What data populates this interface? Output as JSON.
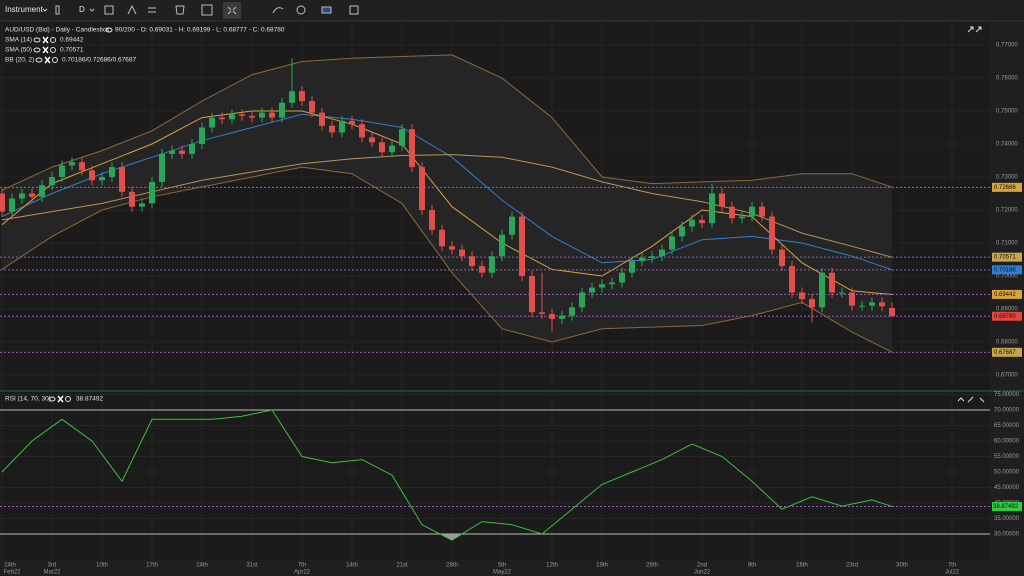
{
  "toolbar": {
    "instrument": "Instrument",
    "timeframe": "D"
  },
  "chart_data": [
    {
      "type": "candlestick",
      "title": "AUD/USD (Bid) - Daily - Candlestick",
      "info": "90/200 - O: 0.69031 - H: 0.69199 - L: 0.68777 - C: 0.68780",
      "up_color": "#2aa55a",
      "down_color": "#e0504a",
      "open": [
        0.725,
        0.7195,
        0.7235,
        0.725,
        0.724,
        0.7275,
        0.73,
        0.7335,
        0.7345,
        0.732,
        0.729,
        0.73,
        0.733,
        0.7255,
        0.721,
        0.722,
        0.7285,
        0.737,
        0.738,
        0.737,
        0.74,
        0.745,
        0.748,
        0.7475,
        0.749,
        0.7485,
        0.748,
        0.7495,
        0.748,
        0.7525,
        0.756,
        0.753,
        0.7495,
        0.7455,
        0.7435,
        0.747,
        0.746,
        0.742,
        0.7405,
        0.7375,
        0.7395,
        0.7445,
        0.733,
        0.72,
        0.714,
        0.709,
        0.708,
        0.706,
        0.703,
        0.701,
        0.706,
        0.7125,
        0.718,
        0.7,
        0.689,
        0.6885,
        0.687,
        0.688,
        0.6905,
        0.695,
        0.6965,
        0.6975,
        0.698,
        0.701,
        0.7045,
        0.7055,
        0.706,
        0.708,
        0.712,
        0.715,
        0.717,
        0.716,
        0.725,
        0.721,
        0.7175,
        0.718,
        0.721,
        0.718,
        0.708,
        0.703,
        0.695,
        0.693,
        0.6905,
        0.701,
        0.695,
        0.695,
        0.691,
        0.691,
        0.692,
        0.69031
      ],
      "high": [
        0.7265,
        0.725,
        0.7265,
        0.7265,
        0.729,
        0.7315,
        0.735,
        0.736,
        0.736,
        0.7335,
        0.7315,
        0.7345,
        0.7345,
        0.727,
        0.7235,
        0.73,
        0.7385,
        0.7395,
        0.7395,
        0.7415,
        0.7465,
        0.7495,
        0.7495,
        0.7505,
        0.7505,
        0.75,
        0.751,
        0.751,
        0.754,
        0.766,
        0.7575,
        0.7545,
        0.751,
        0.747,
        0.7485,
        0.7485,
        0.7475,
        0.7435,
        0.742,
        0.741,
        0.746,
        0.746,
        0.7345,
        0.7215,
        0.7155,
        0.7105,
        0.7095,
        0.7075,
        0.7045,
        0.7075,
        0.714,
        0.7195,
        0.7195,
        0.7015,
        0.701,
        0.69,
        0.6895,
        0.692,
        0.6965,
        0.698,
        0.699,
        0.6995,
        0.7025,
        0.706,
        0.707,
        0.7075,
        0.7095,
        0.7135,
        0.7165,
        0.7185,
        0.7185,
        0.728,
        0.7265,
        0.7225,
        0.7195,
        0.7225,
        0.7225,
        0.7195,
        0.7095,
        0.7045,
        0.6965,
        0.6945,
        0.7025,
        0.7025,
        0.6965,
        0.6965,
        0.6925,
        0.6935,
        0.6935,
        0.69199
      ],
      "low": [
        0.718,
        0.718,
        0.722,
        0.7225,
        0.7225,
        0.726,
        0.7285,
        0.732,
        0.7305,
        0.7275,
        0.7275,
        0.7285,
        0.724,
        0.7195,
        0.7195,
        0.7205,
        0.727,
        0.7355,
        0.7355,
        0.7355,
        0.7385,
        0.7435,
        0.746,
        0.746,
        0.747,
        0.7465,
        0.7465,
        0.7465,
        0.7465,
        0.751,
        0.7515,
        0.748,
        0.744,
        0.742,
        0.742,
        0.7445,
        0.7405,
        0.739,
        0.736,
        0.736,
        0.738,
        0.7315,
        0.7185,
        0.7125,
        0.7075,
        0.7065,
        0.7045,
        0.7015,
        0.6995,
        0.6995,
        0.7045,
        0.711,
        0.6985,
        0.6875,
        0.687,
        0.683,
        0.6855,
        0.6865,
        0.689,
        0.6935,
        0.695,
        0.696,
        0.6965,
        0.6995,
        0.703,
        0.704,
        0.7045,
        0.7065,
        0.7105,
        0.7135,
        0.7145,
        0.7145,
        0.7195,
        0.716,
        0.716,
        0.7165,
        0.7165,
        0.7065,
        0.7015,
        0.6935,
        0.6915,
        0.686,
        0.689,
        0.6935,
        0.6935,
        0.6895,
        0.6895,
        0.6895,
        0.6893,
        0.68777
      ],
      "close": [
        0.7195,
        0.7235,
        0.725,
        0.724,
        0.7275,
        0.73,
        0.7335,
        0.7345,
        0.732,
        0.729,
        0.73,
        0.733,
        0.7255,
        0.721,
        0.722,
        0.7285,
        0.737,
        0.738,
        0.737,
        0.74,
        0.745,
        0.748,
        0.7475,
        0.749,
        0.7485,
        0.748,
        0.7495,
        0.748,
        0.7525,
        0.756,
        0.753,
        0.7495,
        0.7455,
        0.7435,
        0.747,
        0.746,
        0.742,
        0.7405,
        0.7375,
        0.7395,
        0.7445,
        0.733,
        0.72,
        0.714,
        0.709,
        0.708,
        0.706,
        0.703,
        0.701,
        0.706,
        0.7125,
        0.718,
        0.7,
        0.689,
        0.6885,
        0.687,
        0.688,
        0.6905,
        0.695,
        0.6965,
        0.6975,
        0.698,
        0.701,
        0.7045,
        0.7055,
        0.706,
        0.708,
        0.712,
        0.715,
        0.717,
        0.716,
        0.725,
        0.721,
        0.7175,
        0.718,
        0.721,
        0.718,
        0.708,
        0.703,
        0.695,
        0.693,
        0.6905,
        0.701,
        0.695,
        0.695,
        0.691,
        0.691,
        0.692,
        0.6908,
        0.6878
      ],
      "line_x": [
        0,
        5,
        10,
        15,
        20,
        25,
        30,
        35,
        40,
        45,
        50,
        55,
        60,
        65,
        70,
        75,
        80,
        85,
        89
      ],
      "series": [
        {
          "name": "SMA (14)",
          "value": 0.69442,
          "color": "#d9a040",
          "values": [
            0.7155,
            0.728,
            0.734,
            0.74,
            0.748,
            0.75,
            0.75,
            0.746,
            0.74,
            0.721,
            0.71,
            0.702,
            0.7,
            0.709,
            0.72,
            0.718,
            0.704,
            0.6955,
            0.6944
          ]
        },
        {
          "name": "SMA (50)",
          "value": 0.70571,
          "color": "#b89458",
          "values": [
            0.717,
            0.7195,
            0.722,
            0.7255,
            0.729,
            0.7315,
            0.734,
            0.7355,
            0.7365,
            0.7368,
            0.736,
            0.733,
            0.7285,
            0.725,
            0.7225,
            0.719,
            0.713,
            0.709,
            0.7057
          ]
        }
      ],
      "bands": {
        "name": "BB (20, 2)",
        "value_label": "0.70186/0.72686/0.67687",
        "color": "#8a6a3a",
        "middle_color": "#2f7fd0",
        "upper": [
          0.726,
          0.733,
          0.738,
          0.744,
          0.753,
          0.761,
          0.765,
          0.766,
          0.7665,
          0.767,
          0.76,
          0.748,
          0.73,
          0.728,
          0.7285,
          0.729,
          0.731,
          0.731,
          0.7269
        ],
        "middle": [
          0.718,
          0.725,
          0.731,
          0.736,
          0.741,
          0.745,
          0.749,
          0.7475,
          0.745,
          0.736,
          0.723,
          0.712,
          0.704,
          0.705,
          0.711,
          0.712,
          0.71,
          0.706,
          0.7019
        ],
        "lower": [
          0.702,
          0.712,
          0.72,
          0.724,
          0.727,
          0.73,
          0.733,
          0.731,
          0.722,
          0.701,
          0.684,
          0.68,
          0.684,
          0.6845,
          0.685,
          0.688,
          0.692,
          0.683,
          0.6769
        ]
      },
      "price_markers": [
        {
          "value": 0.72686,
          "color": "#d9a53a"
        },
        {
          "value": 0.70571,
          "color": "#c9a44f"
        },
        {
          "value": 0.70186,
          "color": "#2f7fd0"
        },
        {
          "value": 0.69442,
          "color": "#d9a53a"
        },
        {
          "value": 0.6878,
          "label": "0.68780",
          "color": "#e5463e"
        },
        {
          "value": 0.67687,
          "color": "#c9a44f"
        }
      ],
      "xlim": [
        0,
        98
      ],
      "xticks": [
        {
          "value": 0,
          "label": "24th",
          "sublabel": "Feb22"
        },
        {
          "value": 5,
          "label": "3rd",
          "sublabel": "Mar22"
        },
        {
          "value": 10,
          "label": "10th"
        },
        {
          "value": 15,
          "label": "17th"
        },
        {
          "value": 20,
          "label": "24th"
        },
        {
          "value": 25,
          "label": "31st"
        },
        {
          "value": 30,
          "label": "7th",
          "sublabel": "Apr22"
        },
        {
          "value": 35,
          "label": "14th"
        },
        {
          "value": 40,
          "label": "21st"
        },
        {
          "value": 45,
          "label": "28th"
        },
        {
          "value": 50,
          "label": "5th",
          "sublabel": "May22"
        },
        {
          "value": 55,
          "label": "12th"
        },
        {
          "value": 60,
          "label": "19th"
        },
        {
          "value": 65,
          "label": "26th"
        },
        {
          "value": 70,
          "label": "2nd",
          "sublabel": "Jun22"
        },
        {
          "value": 75,
          "label": "9th"
        },
        {
          "value": 80,
          "label": "16th"
        },
        {
          "value": 85,
          "label": "23rd"
        },
        {
          "value": 90,
          "label": "30th"
        },
        {
          "value": 95,
          "label": "7th",
          "sublabel": "Jul22"
        }
      ],
      "ylim": [
        0.66545,
        0.77697
      ],
      "yticks": [
        {
          "value": 0.77,
          "label": "0.77000"
        },
        {
          "value": 0.76,
          "label": "0.76000"
        },
        {
          "value": 0.75,
          "label": "0.75000"
        },
        {
          "value": 0.74,
          "label": "0.74000"
        },
        {
          "value": 0.73,
          "label": "0.73000"
        },
        {
          "value": 0.72,
          "label": "0.72000"
        },
        {
          "value": 0.71,
          "label": "0.71000"
        },
        {
          "value": 0.7,
          "label": "0.70000"
        },
        {
          "value": 0.69,
          "label": "0.69000"
        },
        {
          "value": 0.68,
          "label": "0.68000"
        },
        {
          "value": 0.67,
          "label": "0.67000"
        }
      ],
      "grid": true
    },
    {
      "type": "line",
      "title": "RSI (14, 70, 30)",
      "value": 38.87492,
      "color": "#3cc03c",
      "marker_color": "#2ecc40",
      "fill_color": "#9a9a9a",
      "x": [
        0,
        3,
        6,
        9,
        12,
        15,
        18,
        21,
        24,
        27,
        30,
        33,
        36,
        39,
        42,
        45,
        48,
        51,
        54,
        57,
        60,
        63,
        66,
        69,
        72,
        75,
        78,
        81,
        84,
        87,
        89
      ],
      "values": [
        50,
        60,
        67,
        60,
        47,
        67,
        67,
        67,
        68,
        70,
        55,
        53,
        54,
        49,
        33,
        28,
        34,
        33,
        30,
        38,
        46,
        50,
        54,
        59,
        55,
        47,
        38,
        42,
        39,
        41,
        38.87492
      ],
      "levels": [
        70,
        30
      ],
      "ylim": [
        21.6,
        75.8
      ],
      "yticks": [
        {
          "value": 75,
          "label": "75.00000"
        },
        {
          "value": 70,
          "label": "70.00000"
        },
        {
          "value": 65,
          "label": "65.00000"
        },
        {
          "value": 60,
          "label": "60.00000"
        },
        {
          "value": 55,
          "label": "55.00000"
        },
        {
          "value": 50,
          "label": "50.00000"
        },
        {
          "value": 45,
          "label": "45.00000"
        },
        {
          "value": 40,
          "label": "40.00000"
        },
        {
          "value": 35,
          "label": "35.00000"
        },
        {
          "value": 30,
          "label": "30.00000"
        }
      ]
    }
  ]
}
